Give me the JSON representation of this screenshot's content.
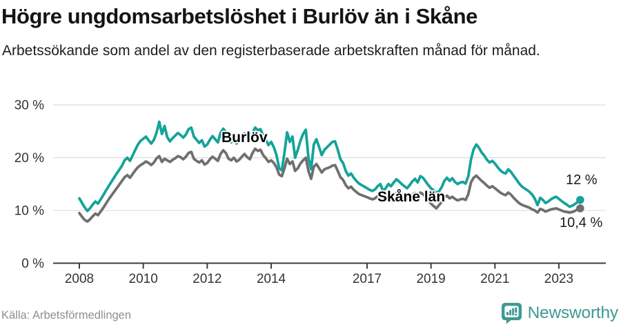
{
  "chart_data": {
    "type": "line",
    "title": "Högre ungdomsarbetslöshet i Burlöv än i Skåne",
    "subtitle": "Arbetssökande som andel av den registerbaserade arbetskraften månad för månad.",
    "frequency": "monthly",
    "x_start": "2008-01",
    "x_end": "2023-09",
    "x_unit": "year",
    "ylim": [
      0,
      30
    ],
    "grid": true,
    "legend": "inline-labels",
    "y_axis": {
      "ticks": [
        {
          "v": 30,
          "label": "30 %"
        },
        {
          "v": 20,
          "label": "20 %"
        },
        {
          "v": 10,
          "label": "10 %"
        },
        {
          "v": 0,
          "label": "0 %"
        }
      ]
    },
    "x_axis": {
      "ticks": [
        {
          "v": 2008,
          "label": "2008"
        },
        {
          "v": 2010,
          "label": "2010"
        },
        {
          "v": 2012,
          "label": "2012"
        },
        {
          "v": 2014,
          "label": "2014"
        },
        {
          "v": 2017,
          "label": "2017"
        },
        {
          "v": 2019,
          "label": "2019"
        },
        {
          "v": 2021,
          "label": "2021"
        },
        {
          "v": 2023,
          "label": "2023"
        }
      ]
    },
    "series": [
      {
        "name": "Burlöv",
        "color": "#15a39a",
        "end_label": "12 %",
        "values": [
          12.3,
          11.4,
          10.6,
          9.9,
          10.4,
          11.1,
          11.7,
          11.3,
          12.1,
          12.9,
          13.8,
          14.6,
          15.4,
          16.2,
          17.0,
          17.7,
          18.5,
          19.5,
          20.0,
          19.4,
          20.4,
          21.5,
          22.5,
          23.2,
          23.6,
          24.0,
          23.3,
          22.7,
          23.4,
          24.8,
          26.8,
          24.5,
          26.0,
          23.9,
          23.1,
          23.7,
          24.2,
          24.7,
          24.3,
          23.8,
          24.4,
          25.4,
          25.7,
          24.0,
          23.4,
          22.8,
          23.3,
          22.1,
          22.5,
          23.4,
          24.1,
          23.5,
          22.9,
          24.7,
          25.5,
          24.9,
          23.3,
          22.9,
          23.6,
          22.7,
          23.1,
          23.9,
          24.6,
          23.8,
          23.2,
          24.7,
          25.7,
          25.2,
          25.4,
          24.2,
          23.4,
          22.4,
          23.0,
          22.0,
          20.5,
          18.0,
          17.6,
          21.0,
          24.8,
          23.0,
          24.0,
          20.0,
          21.5,
          23.2,
          24.5,
          25.3,
          20.0,
          17.8,
          22.5,
          23.5,
          22.0,
          20.5,
          21.5,
          22.0,
          22.5,
          23.0,
          23.1,
          21.5,
          19.7,
          19.0,
          17.5,
          16.6,
          17.0,
          16.2,
          15.6,
          15.1,
          14.8,
          14.5,
          14.2,
          13.9,
          13.7,
          14.0,
          14.6,
          15.0,
          13.7,
          14.2,
          15.0,
          14.6,
          15.3,
          15.9,
          15.5,
          15.0,
          14.6,
          14.2,
          14.8,
          15.5,
          16.0,
          15.3,
          16.5,
          16.2,
          15.5,
          14.8,
          14.2,
          13.8,
          13.4,
          13.6,
          14.4,
          15.6,
          16.2,
          15.6,
          16.1,
          15.4,
          15.0,
          15.3,
          15.4,
          15.1,
          16.5,
          19.6,
          21.6,
          22.5,
          21.9,
          21.0,
          20.4,
          19.6,
          19.1,
          19.4,
          18.9,
          18.2,
          17.6,
          17.2,
          17.0,
          17.8,
          17.3,
          16.6,
          15.9,
          15.2,
          14.6,
          14.2,
          13.9,
          13.5,
          13.0,
          12.2,
          11.0,
          12.4,
          12.0,
          11.4,
          11.7,
          12.1,
          12.4,
          12.6,
          12.2,
          11.8,
          11.4,
          11.1,
          10.7,
          10.9,
          11.2,
          11.6,
          12.0
        ]
      },
      {
        "name": "Skåne län",
        "color": "#6f6f6f",
        "end_label": "10,4 %",
        "values": [
          9.5,
          8.8,
          8.2,
          7.9,
          8.3,
          8.9,
          9.4,
          9.1,
          9.8,
          10.5,
          11.3,
          12.1,
          12.8,
          13.5,
          14.2,
          14.9,
          15.6,
          16.3,
          16.7,
          16.2,
          16.9,
          17.6,
          18.2,
          18.6,
          18.9,
          19.3,
          19.0,
          18.6,
          19.1,
          19.9,
          20.3,
          19.2,
          19.8,
          19.5,
          19.2,
          19.6,
          19.9,
          20.3,
          20.1,
          19.7,
          20.2,
          20.9,
          21.1,
          19.8,
          19.4,
          19.1,
          19.5,
          18.7,
          19.0,
          19.7,
          20.2,
          19.8,
          19.4,
          20.7,
          21.4,
          20.9,
          19.8,
          19.5,
          20.0,
          19.3,
          19.6,
          20.2,
          20.7,
          20.1,
          19.7,
          20.9,
          21.7,
          21.3,
          21.5,
          20.5,
          19.9,
          19.2,
          19.5,
          19.0,
          18.2,
          16.8,
          16.5,
          18.0,
          19.8,
          18.8,
          19.3,
          17.5,
          18.0,
          18.9,
          19.5,
          20.0,
          17.5,
          16.0,
          18.3,
          18.8,
          18.0,
          17.2,
          17.8,
          18.0,
          18.2,
          18.5,
          18.6,
          17.5,
          16.3,
          15.8,
          14.8,
          14.2,
          14.5,
          13.9,
          13.5,
          13.1,
          12.9,
          12.7,
          12.5,
          12.3,
          12.1,
          12.3,
          12.7,
          13.0,
          12.1,
          12.4,
          12.9,
          12.6,
          13.0,
          13.3,
          13.0,
          12.7,
          12.4,
          12.1,
          12.5,
          13.0,
          13.3,
          12.8,
          13.4,
          13.1,
          12.5,
          11.9,
          11.3,
          10.8,
          10.4,
          11.0,
          11.6,
          12.4,
          12.8,
          12.3,
          12.6,
          12.2,
          11.9,
          12.1,
          12.2,
          12.0,
          13.1,
          15.3,
          16.2,
          16.6,
          16.1,
          15.6,
          15.2,
          14.7,
          14.3,
          14.6,
          14.2,
          13.8,
          13.4,
          13.1,
          12.9,
          13.4,
          13.0,
          12.4,
          11.9,
          11.4,
          11.1,
          10.9,
          10.7,
          10.5,
          10.2,
          10.0,
          9.6,
          10.3,
          10.1,
          9.8,
          10.0,
          10.2,
          10.3,
          10.4,
          10.2,
          10.0,
          9.8,
          9.7,
          9.6,
          9.7,
          9.9,
          10.2,
          10.4
        ]
      }
    ]
  },
  "footer": {
    "source": "Källa: Arbetsförmedlingen",
    "brand": "Newsworthy"
  },
  "colors": {
    "accent_teal": "#15a39a",
    "line_gray": "#6f6f6f",
    "logo_teal": "#3f9a91",
    "gridline": "#dcdcdc",
    "axis": "#3c3c3c"
  }
}
